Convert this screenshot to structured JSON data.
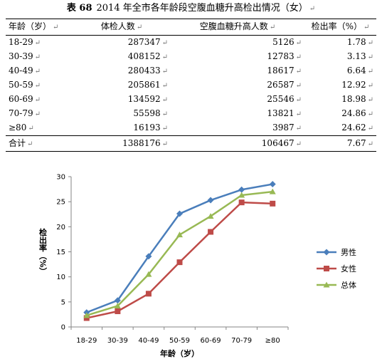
{
  "title": {
    "label": "表 68",
    "text": "2014 年全市各年龄段空腹血糖升高检出情况（女）"
  },
  "table": {
    "headers": [
      "年龄（岁）",
      "体检人数",
      "空腹血糖升高人数",
      "检出率（%）"
    ],
    "rows": [
      [
        "18-29",
        "287347",
        "5126",
        "1.78"
      ],
      [
        "30-39",
        "408152",
        "12783",
        "3.13"
      ],
      [
        "40-49",
        "280433",
        "18617",
        "6.64"
      ],
      [
        "50-59",
        "205861",
        "26587",
        "12.92"
      ],
      [
        "60-69",
        "134592",
        "25546",
        "18.98"
      ],
      [
        "70-79",
        "55598",
        "13821",
        "24.86"
      ],
      [
        "≥80",
        "16193",
        "3987",
        "24.62"
      ]
    ],
    "total": [
      "合计",
      "1388176",
      "106467",
      "7.67"
    ]
  },
  "chart_data": {
    "type": "line",
    "categories": [
      "18-29",
      "30-39",
      "40-49",
      "50-59",
      "60-69",
      "70-79",
      "≥80"
    ],
    "xlabel": "年龄（岁）",
    "ylabel": "检出率（%）",
    "ylim": [
      0,
      30
    ],
    "yticks": [
      0,
      5,
      10,
      15,
      20,
      25,
      30
    ],
    "grid": false,
    "legend_position": "right",
    "series": [
      {
        "name": "男性",
        "color": "#4A7EBB",
        "marker": "diamond",
        "values": [
          2.9,
          5.3,
          14.1,
          22.6,
          25.3,
          27.4,
          28.5
        ]
      },
      {
        "name": "女性",
        "color": "#BE4B48",
        "marker": "square",
        "values": [
          1.78,
          3.13,
          6.64,
          12.92,
          18.98,
          24.86,
          24.62
        ]
      },
      {
        "name": "总体",
        "color": "#98B954",
        "marker": "triangle",
        "values": [
          2.3,
          4.2,
          10.5,
          18.4,
          22.1,
          26.3,
          27.0
        ]
      }
    ]
  }
}
